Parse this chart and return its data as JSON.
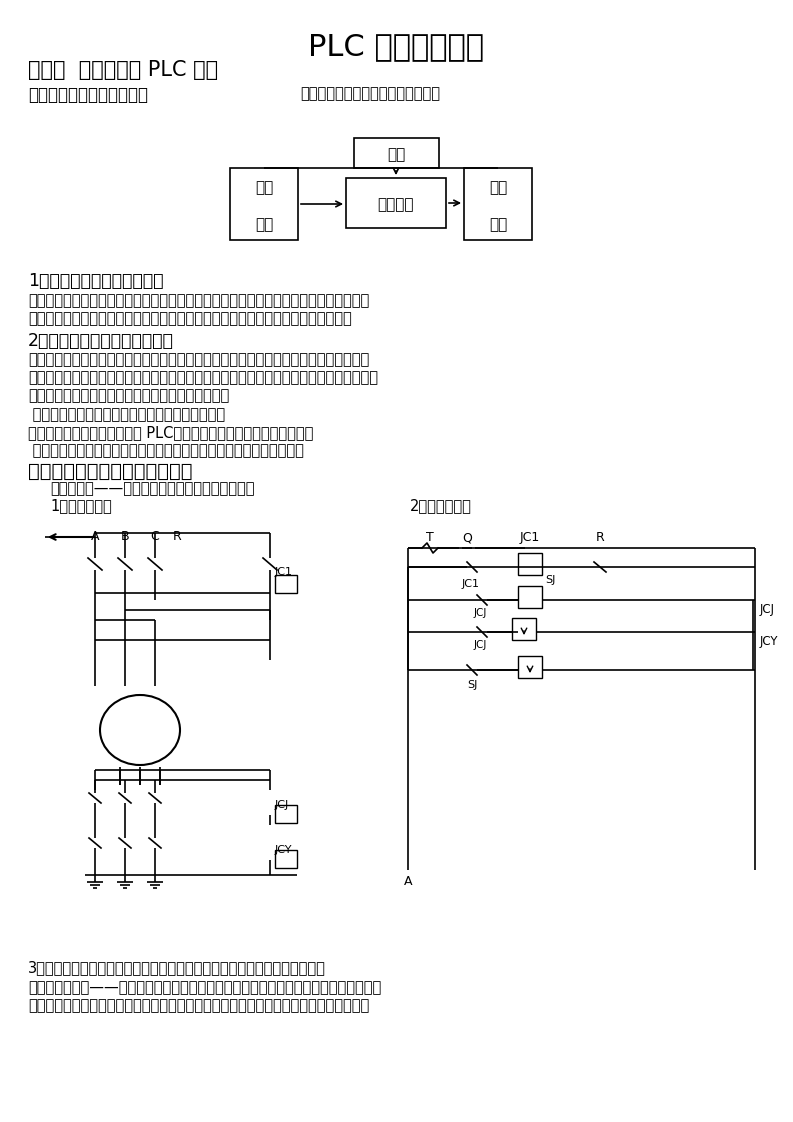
{
  "title": "PLC 初级培训教材",
  "chapter": "第一章  电气系统及 PLC 简介",
  "sec1_left": "一、设备电气系统结构简介",
  "sec1_right": "设备电气系统一般由以下几部分组成",
  "b_power": "电源",
  "b_input1": "输入",
  "b_input2": "元件",
  "b_ctrl": "控制中心",
  "b_exec1": "执行",
  "b_exec2": "机构",
  "lines": [
    [
      "1、执行机构：执行工作命令",
      28,
      272,
      12.5
    ],
    [
      "　　陶瓷行业中常见的执行机构有：电动机（普通、带刹车、带离合）、电磁阀（控制油",
      28,
      293,
      10.5
    ],
    [
      "路或气路的通闭完成机械动作）、伺服马达（控制调节油路、气路的开度大小）等。",
      28,
      311,
      10.5
    ],
    [
      "2、输入元件：从外部取入信息",
      28,
      332,
      12.5
    ],
    [
      "　　陶瓷行业中常见的输入元件有：各类主令电器（开头、按扔）、行程开关（位置）、",
      28,
      352,
      10.5
    ],
    [
      "近接开关（反映铁件运动位置）、光电开关（运动物体的位置）、编码器（反映物体运动距",
      28,
      370,
      10.5
    ],
    [
      "离）、热电偶（温度）、粉位感应器粉料位置）等。",
      28,
      388,
      10.5
    ],
    [
      " 控制中心：记忆程序或信息、执行逻辑运算及判断",
      28,
      407,
      10.5
    ],
    [
      "　　常见控制中心部件有各类 PLC、继电器、接触器、热继电器、等。",
      28,
      425,
      10.5
    ],
    [
      " 电源向输入元件、控制中心提供控制电源；向执行机构提供电气动力。",
      28,
      443,
      10.5
    ],
    [
      "二、简单的单台电动机电气系统",
      28,
      462,
      14
    ],
    [
      "例：一台星——角启动的鼠笼式电动机的电气系统",
      50,
      481,
      10.5
    ],
    [
      "1、一次线路图",
      50,
      498,
      10.5
    ],
    [
      "2、二次线路图",
      410,
      498,
      10.5
    ],
    [
      "3、上图看出，二次回路图中为实现延时控制，要使用一个时间继电器，而在",
      28,
      960,
      10.5
    ],
    [
      "陶瓷行业中，星——角启动控制可说是一种非常简单的例子，若在陶瓷生产设备上全部采",
      28,
      980,
      10.5
    ],
    [
      "用继电器类来实现生产过程的自动控制，要使用许多的继电器、时间继电器等其它一些电",
      28,
      998,
      10.5
    ]
  ],
  "bg_color": "#ffffff",
  "lc": "#000000"
}
